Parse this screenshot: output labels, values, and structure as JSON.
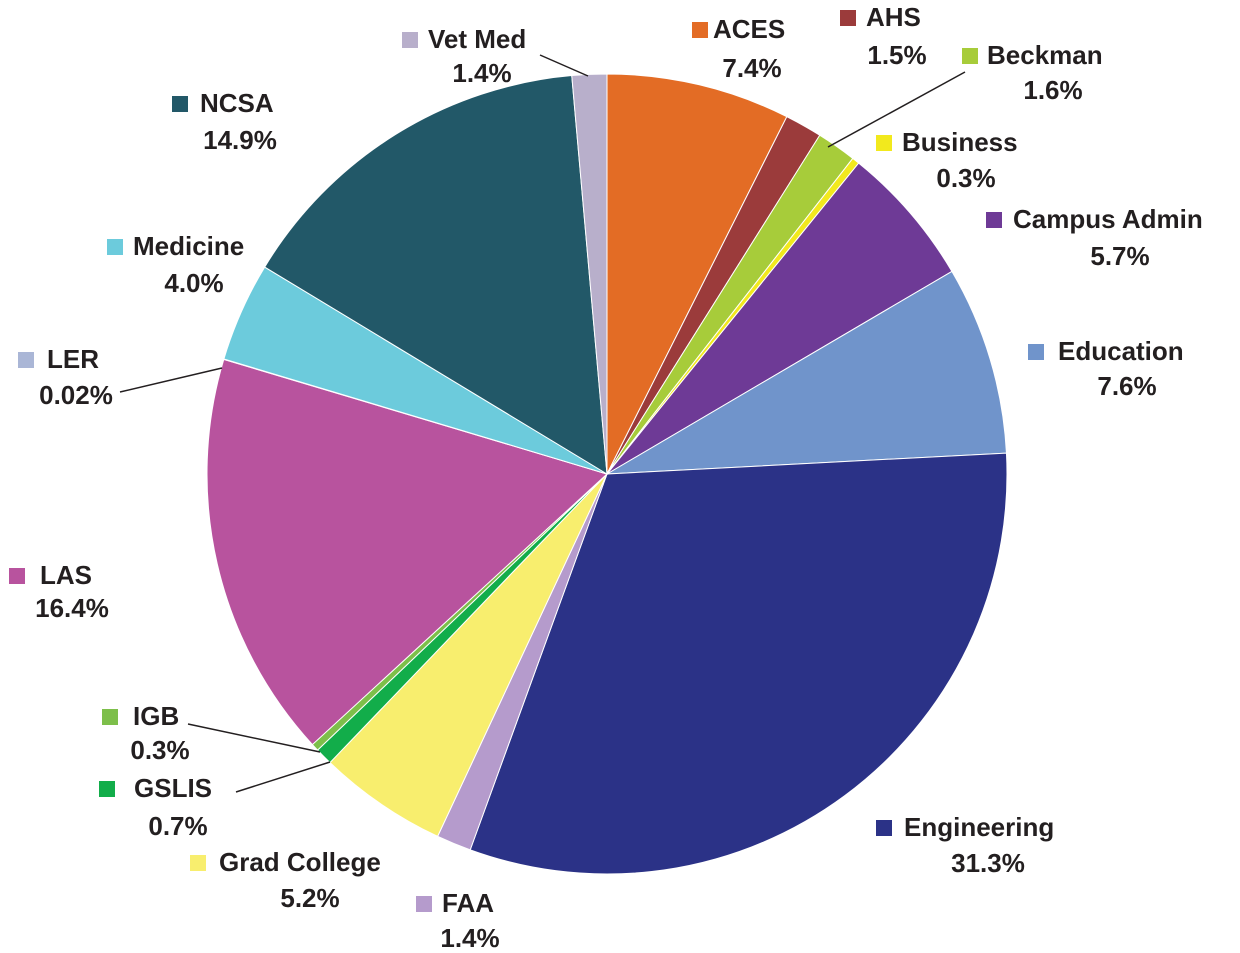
{
  "chart_data": {
    "type": "pie",
    "categories": [
      "ACES",
      "AHS",
      "Beckman",
      "Business",
      "Campus Admin",
      "Education",
      "Engineering",
      "FAA",
      "Grad College",
      "GSLIS",
      "IGB",
      "LAS",
      "LER",
      "Medicine",
      "NCSA",
      "Vet Med"
    ],
    "values": [
      7.4,
      1.5,
      1.6,
      0.3,
      5.7,
      7.6,
      31.3,
      1.4,
      5.2,
      0.7,
      0.3,
      16.4,
      0.02,
      4.0,
      14.9,
      1.4
    ],
    "value_labels": [
      "7.4%",
      "1.5%",
      "1.6%",
      "0.3%",
      "5.7%",
      "7.6%",
      "31.3%",
      "1.4%",
      "5.2%",
      "0.7%",
      "0.3%",
      "16.4%",
      "0.02%",
      "4.0%",
      "14.9%",
      "1.4%"
    ],
    "colors": [
      "#e36c25",
      "#9b3b3b",
      "#a7cc3a",
      "#f2e91d",
      "#6e3a96",
      "#7094cb",
      "#2b3287",
      "#b59bcc",
      "#f8ee6e",
      "#12ad4a",
      "#7dbf4a",
      "#b8539e",
      "#aab6d6",
      "#6ccbdc",
      "#225868",
      "#b8afcb"
    ]
  }
}
